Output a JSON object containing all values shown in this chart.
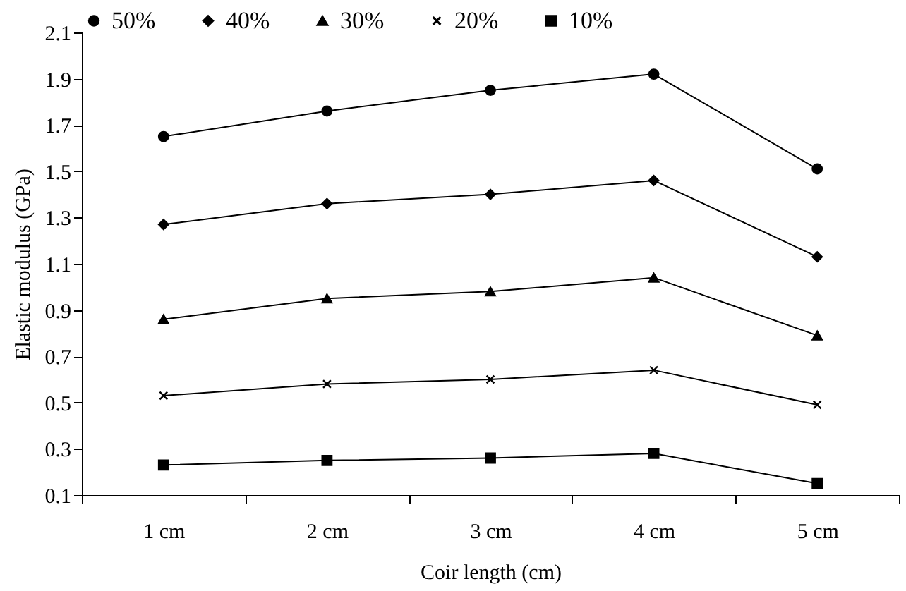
{
  "chart_data": {
    "type": "line",
    "xlabel": "Coir length (cm)",
    "ylabel": "Elastic modulus (GPa)",
    "categories": [
      "1 cm",
      "2 cm",
      "3 cm",
      "4 cm",
      "5 cm"
    ],
    "series": [
      {
        "name": "50%",
        "color": "#000000",
        "marker": "circle",
        "values": [
          1.65,
          1.76,
          1.85,
          1.92,
          1.51
        ]
      },
      {
        "name": "40%",
        "color": "#000000",
        "marker": "diamond",
        "values": [
          1.27,
          1.36,
          1.4,
          1.46,
          1.13
        ]
      },
      {
        "name": "30%",
        "color": "#000000",
        "marker": "triangle",
        "values": [
          0.86,
          0.95,
          0.98,
          1.04,
          0.79
        ]
      },
      {
        "name": "20%",
        "color": "#000000",
        "marker": "cross",
        "values": [
          0.53,
          0.58,
          0.6,
          0.64,
          0.49
        ]
      },
      {
        "name": "10%",
        "color": "#000000",
        "marker": "square",
        "values": [
          0.23,
          0.25,
          0.26,
          0.28,
          0.15
        ]
      }
    ],
    "ylim": [
      0.1,
      2.1
    ],
    "yticks": [
      0.1,
      0.3,
      0.5,
      0.7,
      0.9,
      1.1,
      1.3,
      1.5,
      1.7,
      1.9,
      2.1
    ],
    "legend": "top"
  }
}
